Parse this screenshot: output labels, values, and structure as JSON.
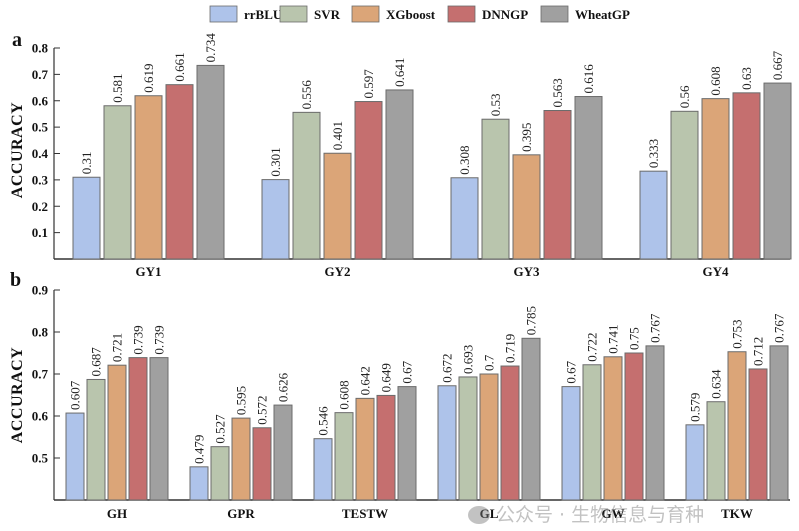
{
  "chart_data": [
    {
      "panel": "a",
      "type": "bar",
      "title": "",
      "xlabel": "",
      "ylabel": "ACCURACY",
      "ylim": [
        0,
        0.8
      ],
      "yticks": [
        0.1,
        0.2,
        0.3,
        0.4,
        0.5,
        0.6,
        0.7,
        0.8
      ],
      "grid": false,
      "categories": [
        "GY1",
        "GY2",
        "GY3",
        "GY4"
      ],
      "series": [
        {
          "name": "rrBLUP",
          "values": [
            0.31,
            0.301,
            0.308,
            0.333
          ],
          "labels": [
            "0.31",
            "0.301",
            "0.308",
            "0.333"
          ]
        },
        {
          "name": "SVR",
          "values": [
            0.581,
            0.556,
            0.53,
            0.56
          ],
          "labels": [
            "0.581",
            "0.556",
            "0.53",
            "0.56"
          ]
        },
        {
          "name": "XGboost",
          "values": [
            0.619,
            0.401,
            0.395,
            0.608
          ],
          "labels": [
            "0.619",
            "0.401",
            "0.395",
            "0.608"
          ]
        },
        {
          "name": "DNNGP",
          "values": [
            0.661,
            0.597,
            0.563,
            0.63
          ],
          "labels": [
            "0.661",
            "0.597",
            "0.563",
            "0.63"
          ]
        },
        {
          "name": "WheatGP",
          "values": [
            0.734,
            0.641,
            0.616,
            0.667
          ],
          "labels": [
            "0.734",
            "0.641",
            "0.616",
            "0.667"
          ]
        }
      ]
    },
    {
      "panel": "b",
      "type": "bar",
      "title": "",
      "xlabel": "",
      "ylabel": "ACCURACY",
      "ylim": [
        0.4,
        0.9
      ],
      "yticks": [
        0.5,
        0.6,
        0.7,
        0.8,
        0.9
      ],
      "grid": false,
      "categories": [
        "GH",
        "GPR",
        "TESTW",
        "GL",
        "GW",
        "TKW"
      ],
      "series": [
        {
          "name": "rrBLUP",
          "values": [
            0.607,
            0.479,
            0.546,
            0.672,
            0.67,
            0.579
          ],
          "labels": [
            "0.607",
            "0.479",
            "0.546",
            "0.672",
            "0.67",
            "0.579"
          ]
        },
        {
          "name": "SVR",
          "values": [
            0.687,
            0.527,
            0.608,
            0.693,
            0.722,
            0.634
          ],
          "labels": [
            "0.687",
            "0.527",
            "0.608",
            "0.693",
            "0.722",
            "0.634"
          ]
        },
        {
          "name": "XGboost",
          "values": [
            0.721,
            0.595,
            0.642,
            0.7,
            0.741,
            0.753
          ],
          "labels": [
            "0.721",
            "0.595",
            "0.642",
            "0.7",
            "0.741",
            "0.753"
          ]
        },
        {
          "name": "DNNGP",
          "values": [
            0.739,
            0.572,
            0.649,
            0.719,
            0.75,
            0.712
          ],
          "labels": [
            "0.739",
            "0.572",
            "0.649",
            "0.719",
            "0.75",
            "0.712"
          ]
        },
        {
          "name": "WheatGP",
          "values": [
            0.739,
            0.626,
            0.67,
            0.785,
            0.767,
            0.767
          ],
          "labels": [
            "0.739",
            "0.626",
            "0.67",
            "0.785",
            "0.767",
            "0.767"
          ]
        }
      ]
    }
  ],
  "legend": {
    "placement": "top-center",
    "items": [
      {
        "name": "rrBLUP",
        "color": "#aec3ea"
      },
      {
        "name": "SVR",
        "color": "#b9c5ad"
      },
      {
        "name": "XGboost",
        "color": "#dba578"
      },
      {
        "name": "DNNGP",
        "color": "#c56f6f"
      },
      {
        "name": "WheatGP",
        "color": "#a0a0a0"
      }
    ]
  },
  "panel_letters": [
    "a",
    "b"
  ],
  "watermark": "公众号 · 生物信息与育种",
  "colors": {
    "bar_stroke": "#6b6b6b",
    "axis": "#333333"
  }
}
